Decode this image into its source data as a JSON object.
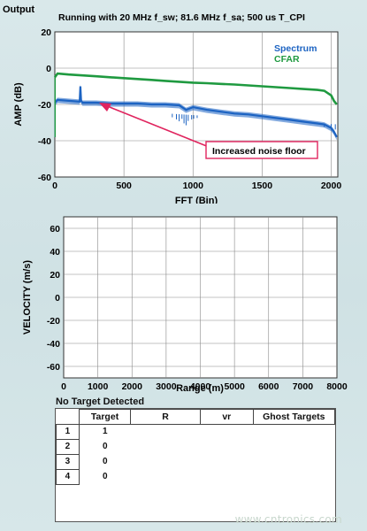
{
  "charts": {
    "spectrum": {
      "output_label": "Output",
      "title": "Running with 20 MHz f_sw; 81.6 MHz f_sa; 500 us T_CPI",
      "xlabel": "FFT (Bin)",
      "ylabel": "AMP (dB)",
      "legend": [
        "Spectrum",
        "CFAR"
      ],
      "annotation": "Increased noise floor"
    },
    "velocity": {
      "xlabel": "Range (m)",
      "ylabel": "VELOCITY (m/s)"
    }
  },
  "colors": {
    "spectrum": "#1c63c2",
    "cfar": "#1f9a40",
    "annotation_arrow": "#e0245e",
    "grid": "#888888"
  },
  "chart_data": [
    {
      "type": "line",
      "title": "Running with 20 MHz f_sw; 81.6 MHz f_sa; 500 us T_CPI",
      "xlabel": "FFT (Bin)",
      "ylabel": "AMP (dB)",
      "xlim": [
        0,
        2048
      ],
      "ylim": [
        -60,
        20
      ],
      "x_ticks": [
        0,
        500,
        1000,
        1500,
        2000
      ],
      "y_ticks": [
        -60,
        -40,
        -20,
        0,
        20
      ],
      "grid": true,
      "legend_position": "top-right",
      "series": [
        {
          "name": "CFAR",
          "x": [
            0,
            20,
            100,
            200,
            300,
            400,
            500,
            600,
            700,
            800,
            900,
            1000,
            1100,
            1200,
            1300,
            1400,
            1500,
            1600,
            1700,
            1800,
            1900,
            1950,
            2000,
            2020,
            2040
          ],
          "y": [
            -5,
            -3,
            -3.5,
            -4,
            -4.5,
            -5,
            -5.5,
            -6,
            -6.5,
            -7,
            -7.5,
            -8,
            -8.3,
            -8.7,
            -9,
            -9.5,
            -10,
            -10.5,
            -11,
            -11.5,
            -12,
            -12.5,
            -15,
            -18,
            -20
          ]
        },
        {
          "name": "Spectrum",
          "x": [
            0,
            20,
            100,
            180,
            185,
            190,
            200,
            300,
            400,
            500,
            600,
            700,
            800,
            900,
            950,
            1000,
            1100,
            1200,
            1300,
            1400,
            1500,
            1600,
            1700,
            1800,
            1900,
            1950,
            2000,
            2020,
            2040
          ],
          "y": [
            -19,
            -17.5,
            -18,
            -18.5,
            -10,
            -18,
            -19,
            -19,
            -19.5,
            -19.5,
            -19.5,
            -20,
            -20,
            -20.5,
            -23,
            -21.5,
            -23,
            -24,
            -25,
            -25.5,
            -26.5,
            -27.5,
            -28.5,
            -29.5,
            -30.5,
            -31,
            -33,
            -35,
            -38
          ]
        }
      ],
      "annotations": [
        {
          "text": "Increased noise floor",
          "x": 330,
          "y": -20
        }
      ]
    },
    {
      "type": "scatter",
      "title": "",
      "xlabel": "Range (m)",
      "ylabel": "VELOCITY (m/s)",
      "xlim": [
        0,
        8000
      ],
      "ylim": [
        -70,
        70
      ],
      "x_ticks": [
        0,
        1000,
        2000,
        3000,
        4000,
        5000,
        6000,
        7000,
        8000
      ],
      "y_ticks": [
        -60,
        -40,
        -20,
        0,
        20,
        40,
        60
      ],
      "grid": true,
      "series": []
    }
  ],
  "target_panel": {
    "title": "No Target Detected",
    "columns": [
      "Target",
      "R",
      "vr",
      "Ghost Targets"
    ],
    "rows": [
      {
        "num": "1",
        "target": "1",
        "r": "",
        "vr": "",
        "ghost": ""
      },
      {
        "num": "2",
        "target": "0",
        "r": "",
        "vr": "",
        "ghost": ""
      },
      {
        "num": "3",
        "target": "0",
        "r": "",
        "vr": "",
        "ghost": ""
      },
      {
        "num": "4",
        "target": "0",
        "r": "",
        "vr": "",
        "ghost": ""
      }
    ]
  },
  "watermark": "www.cntronics.com"
}
